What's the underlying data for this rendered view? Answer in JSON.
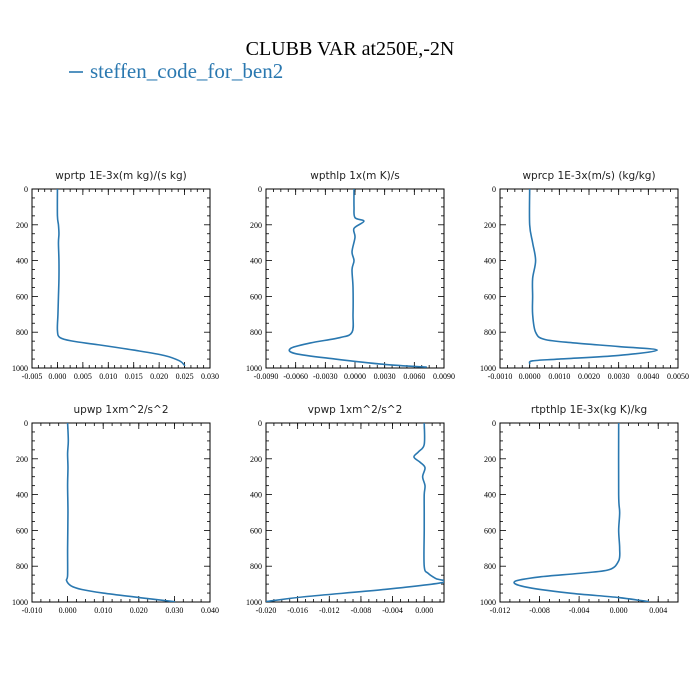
{
  "figure": {
    "title": "CLUBB VAR at250E,-2N",
    "legend": [
      {
        "label": "steffen_code_for_ben2",
        "color": "#2a78b0"
      }
    ]
  },
  "chart_data": [
    {
      "type": "line",
      "title": "wprtp  1E-3x(m kg)/(s kg)",
      "xlim": [
        -0.005,
        0.03
      ],
      "ylim": [
        1000,
        0
      ],
      "xticks": [
        "-0.005",
        "0.000",
        "0.005",
        "0.010",
        "0.015",
        "0.020",
        "0.025",
        "0.030"
      ],
      "yticks": [
        "0",
        "200",
        "400",
        "600",
        "800",
        "1000"
      ],
      "series": [
        {
          "name": "steffen_code_for_ben2",
          "color": "#2a78b0",
          "x": [
            0.0,
            0.0,
            0.0002,
            0.0003,
            0.0002,
            0.0003,
            0.0003,
            0.0002,
            0.0001,
            0.0,
            0.0005,
            0.003,
            0.008,
            0.015,
            0.021,
            0.024,
            0.025
          ],
          "y": [
            0,
            150,
            200,
            250,
            300,
            400,
            500,
            600,
            700,
            790,
            830,
            850,
            870,
            900,
            930,
            960,
            985
          ]
        }
      ]
    },
    {
      "type": "line",
      "title": "wpthlp  1x(m K)/s",
      "xlim": [
        -0.009,
        0.009
      ],
      "ylim": [
        1000,
        0
      ],
      "xticks": [
        "-0.0090",
        "-0.0060",
        "-0.0030",
        "0.0000",
        "0.0030",
        "0.0060",
        "0.0090"
      ],
      "yticks": [
        "0",
        "200",
        "400",
        "600",
        "800",
        "1000"
      ],
      "series": [
        {
          "name": "steffen_code_for_ben2",
          "color": "#2a78b0",
          "x": [
            -0.0001,
            -0.0001,
            0.0,
            0.0009,
            -0.0001,
            0.0,
            -0.0003,
            -0.0001,
            -0.0003,
            -0.0002,
            -0.0002,
            -0.0003,
            -0.0015,
            -0.0045,
            -0.0065,
            -0.006,
            -0.002,
            0.003,
            0.0072
          ],
          "y": [
            0,
            100,
            160,
            180,
            220,
            270,
            350,
            400,
            450,
            550,
            700,
            800,
            830,
            860,
            890,
            920,
            950,
            980,
            995
          ]
        }
      ]
    },
    {
      "type": "line",
      "title": "wprcp  1E-3x(m/s) (kg/kg)",
      "xlim": [
        -0.001,
        0.005
      ],
      "ylim": [
        1000,
        0
      ],
      "xticks": [
        "-0.0010",
        "0.0000",
        "0.0010",
        "0.0020",
        "0.0030",
        "0.0040",
        "0.0050"
      ],
      "yticks": [
        "0",
        "200",
        "400",
        "600",
        "800",
        "1000"
      ],
      "series": [
        {
          "name": "steffen_code_for_ben2",
          "color": "#2a78b0",
          "x": [
            0.0,
            0.0,
            0.0001,
            0.0002,
            0.0001,
            0.0001,
            0.0001,
            0.0002,
            0.0005,
            0.0015,
            0.003,
            0.0043,
            0.003,
            0.001,
            0.0001,
            0.0
          ],
          "y": [
            0,
            200,
            300,
            400,
            500,
            600,
            700,
            800,
            840,
            860,
            880,
            900,
            930,
            950,
            960,
            975
          ]
        }
      ]
    },
    {
      "type": "line",
      "title": "upwp  1xm^2/s^2",
      "xlim": [
        -0.01,
        0.04
      ],
      "ylim": [
        1000,
        0
      ],
      "xticks": [
        "-0.010",
        "0.000",
        "0.010",
        "0.020",
        "0.030",
        "0.040"
      ],
      "yticks": [
        "0",
        "200",
        "400",
        "600",
        "800",
        "1000"
      ],
      "series": [
        {
          "name": "steffen_code_for_ben2",
          "color": "#2a78b0",
          "x": [
            0.0,
            0.0002,
            0.0,
            0.0001,
            0.0,
            0.0001,
            0.0,
            0.0,
            -0.0003,
            0.001,
            0.004,
            0.01,
            0.02,
            0.03
          ],
          "y": [
            0,
            100,
            170,
            250,
            350,
            500,
            700,
            850,
            880,
            910,
            930,
            950,
            975,
            998
          ]
        }
      ]
    },
    {
      "type": "line",
      "title": "vpwp  1xm^2/s^2",
      "xlim": [
        -0.02,
        0.0025
      ],
      "ylim": [
        1000,
        0
      ],
      "xticks": [
        "-0.020",
        "-0.016",
        "-0.012",
        "-0.008",
        "-0.004",
        "0.000"
      ],
      "yticks": [
        "0",
        "200",
        "400",
        "600",
        "800",
        "1000"
      ],
      "series": [
        {
          "name": "steffen_code_for_ben2",
          "color": "#2a78b0",
          "x": [
            0.0,
            0.0,
            -0.0007,
            -0.0013,
            -0.0005,
            0.0001,
            -0.0002,
            0.0001,
            0.0,
            0.0,
            0.0,
            0.0,
            0.0005,
            0.0015,
            0.0025,
            -0.005,
            -0.015,
            -0.02
          ],
          "y": [
            0,
            120,
            160,
            190,
            220,
            250,
            300,
            350,
            400,
            500,
            600,
            800,
            840,
            870,
            890,
            930,
            970,
            998
          ]
        }
      ]
    },
    {
      "type": "line",
      "title": "rtpthlp  1E-3x(kg K)/kg",
      "xlim": [
        -0.012,
        0.006
      ],
      "ylim": [
        1000,
        0
      ],
      "xticks": [
        "-0.012",
        "-0.008",
        "-0.004",
        "0.000",
        "0.004"
      ],
      "yticks": [
        "0",
        "200",
        "400",
        "600",
        "800",
        "1000"
      ],
      "series": [
        {
          "name": "steffen_code_for_ben2",
          "color": "#2a78b0",
          "x": [
            0.0,
            0.0,
            0.0001,
            0.0,
            0.0001,
            0.0,
            -0.001,
            -0.004,
            -0.008,
            -0.0105,
            -0.0095,
            -0.005,
            0.0,
            0.003
          ],
          "y": [
            0,
            400,
            500,
            600,
            700,
            770,
            820,
            840,
            860,
            885,
            915,
            950,
            975,
            998
          ]
        }
      ]
    }
  ]
}
